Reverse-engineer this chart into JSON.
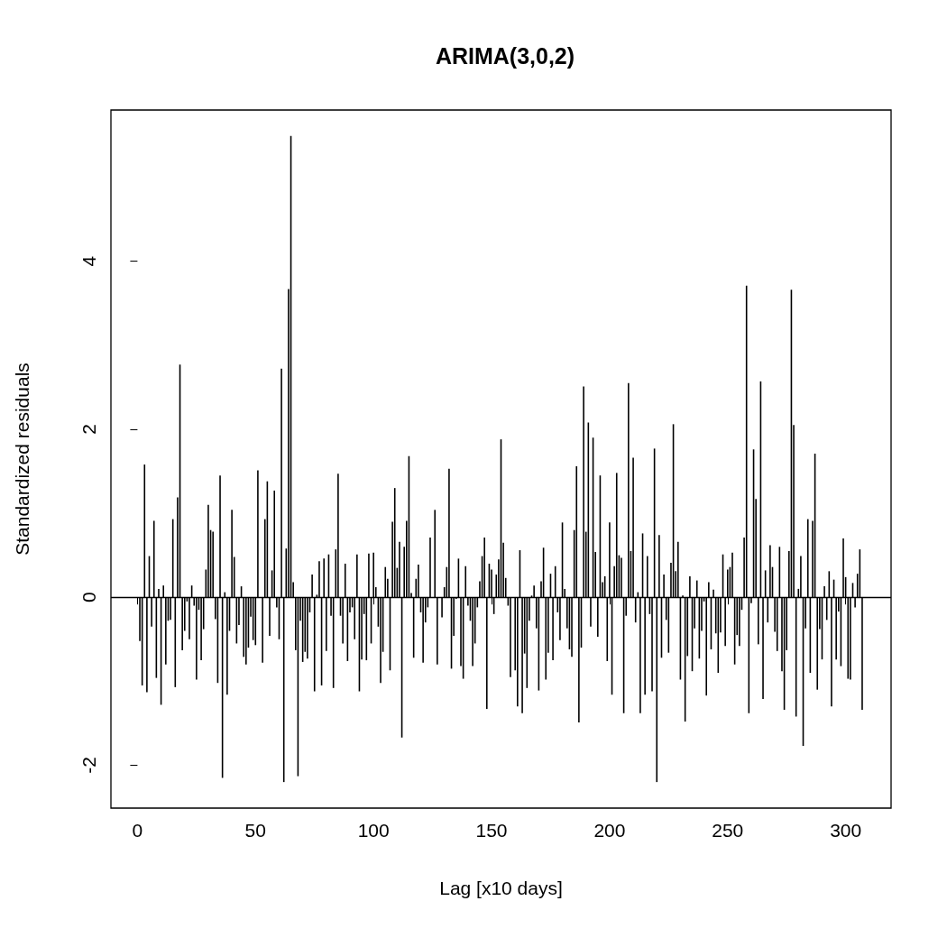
{
  "chart_data": {
    "type": "bar",
    "title": "ARIMA(3,0,2)",
    "xlabel": "Lag [x10 days]",
    "ylabel": "Standardized residuals",
    "x": [
      1,
      2,
      3,
      4,
      5,
      6,
      7,
      8,
      9,
      10,
      11,
      12,
      13,
      14,
      15,
      16,
      17,
      18,
      19,
      20,
      21,
      22,
      23,
      24,
      25,
      26,
      27,
      28,
      29,
      30,
      31,
      32,
      33,
      34,
      35,
      36,
      37,
      38,
      39,
      40,
      41,
      42,
      43,
      44,
      45,
      46,
      47,
      48,
      49,
      50,
      51,
      52,
      53,
      54,
      55,
      56,
      57,
      58,
      59,
      60,
      61,
      62,
      63,
      64,
      65,
      66,
      67,
      68,
      69,
      70,
      71,
      72,
      73,
      74,
      75,
      76,
      77,
      78,
      79,
      80,
      81,
      82,
      83,
      84,
      85,
      86,
      87,
      88,
      89,
      90,
      91,
      92,
      93,
      94,
      95,
      96,
      97,
      98,
      99,
      100,
      101,
      102,
      103,
      104,
      105,
      106,
      107,
      108,
      109,
      110,
      111,
      112,
      113,
      114,
      115,
      116,
      117,
      118,
      119,
      120,
      121,
      122,
      123,
      124,
      125,
      126,
      127,
      128,
      129,
      130,
      131,
      132,
      133,
      134,
      135,
      136,
      137,
      138,
      139,
      140,
      141,
      142,
      143,
      144,
      145,
      146,
      147,
      148,
      149,
      150,
      151,
      152,
      153,
      154,
      155,
      156,
      157,
      158,
      159,
      160,
      161,
      162,
      163,
      164,
      165,
      166,
      167,
      168,
      169,
      170,
      171,
      172,
      173,
      174,
      175,
      176,
      177,
      178,
      179,
      180,
      181,
      182,
      183,
      184,
      185,
      186,
      187,
      188,
      189,
      190,
      191,
      192,
      193,
      194,
      195,
      196,
      197,
      198,
      199,
      200,
      201,
      202,
      203,
      204,
      205,
      206,
      207,
      208,
      209,
      210,
      211,
      212,
      213,
      214,
      215,
      216,
      217,
      218,
      219,
      220,
      221,
      222,
      223,
      224,
      225,
      226,
      227,
      228,
      229,
      230,
      231,
      232,
      233,
      234,
      235,
      236,
      237,
      238,
      239,
      240,
      241,
      242,
      243,
      244,
      245,
      246,
      247,
      248,
      249,
      250,
      251,
      252,
      253,
      254,
      255,
      256,
      257,
      258,
      259,
      260,
      261,
      262,
      263,
      264,
      265,
      266,
      267,
      268,
      269,
      270,
      271,
      272,
      273,
      274,
      275,
      276,
      277,
      278,
      279,
      280,
      281,
      282,
      283,
      284,
      285,
      286,
      287,
      288,
      289,
      290,
      291,
      292,
      293,
      294,
      295,
      296,
      297,
      298,
      299,
      300,
      301,
      302,
      303,
      304,
      305,
      306,
      307
    ],
    "series": [
      {
        "color": "#000000",
        "values": [
          -0.52,
          -1.05,
          1.58,
          -1.13,
          0.49,
          -0.35,
          0.91,
          -0.96,
          0.1,
          -1.28,
          0.14,
          -0.8,
          -0.28,
          -0.27,
          0.93,
          -1.07,
          1.19,
          2.77,
          -0.63,
          -0.4,
          -0.05,
          -0.5,
          0.14,
          -0.1,
          -0.98,
          -0.15,
          -0.75,
          -0.38,
          0.33,
          1.1,
          0.8,
          0.78,
          -0.26,
          -1.02,
          1.45,
          -2.15,
          0.06,
          -1.16,
          -0.4,
          1.04,
          0.48,
          -0.55,
          -0.33,
          0.13,
          -0.71,
          -0.8,
          -0.6,
          -0.23,
          -0.51,
          -0.57,
          1.51,
          null,
          -0.78,
          0.93,
          1.38,
          -0.46,
          0.32,
          1.27,
          -0.12,
          -0.5,
          2.72,
          -2.2,
          0.58,
          3.67,
          5.49,
          0.18,
          -0.63,
          -2.13,
          -0.28,
          -0.77,
          -0.65,
          -0.73,
          -0.18,
          0.27,
          -1.12,
          0.03,
          0.43,
          -1.05,
          0.46,
          -0.64,
          0.51,
          -0.22,
          -1.08,
          0.57,
          1.47,
          -0.22,
          -0.55,
          0.4,
          -0.76,
          -0.18,
          -0.12,
          -0.5,
          0.51,
          -1.12,
          -0.74,
          -0.2,
          -0.75,
          0.52,
          -0.55,
          0.53,
          0.12,
          -0.35,
          -1.02,
          -0.65,
          0.36,
          0.22,
          -0.87,
          0.9,
          1.3,
          0.35,
          0.66,
          -1.67,
          0.6,
          0.91,
          1.68,
          0.05,
          -0.72,
          0.22,
          0.39,
          -0.18,
          -0.78,
          -0.3,
          -0.12,
          0.71,
          null,
          1.04,
          -0.8,
          null,
          -0.24,
          0.12,
          0.36,
          1.53,
          -0.85,
          -0.46,
          -0.02,
          0.46,
          -0.82,
          -0.97,
          0.37,
          -0.1,
          -0.28,
          -0.82,
          -0.55,
          -0.12,
          0.19,
          0.49,
          0.71,
          -1.33,
          0.4,
          0.33,
          -0.2,
          0.27,
          0.45,
          1.88,
          0.65,
          0.23,
          -0.1,
          -0.95,
          null,
          -0.87,
          -1.3,
          0.56,
          -1.38,
          -0.67,
          -1.08,
          -0.28,
          0.02,
          0.14,
          -0.37,
          -1.11,
          0.19,
          0.59,
          -0.98,
          -0.66,
          0.28,
          -0.75,
          0.37,
          -0.18,
          -0.51,
          0.89,
          0.1,
          -0.37,
          -0.62,
          -0.71,
          0.8,
          1.56,
          -1.49,
          -0.6,
          2.51,
          0.78,
          2.08,
          -0.35,
          1.9,
          0.54,
          -0.47,
          1.45,
          0.18,
          0.25,
          -0.76,
          0.89,
          -1.16,
          0.37,
          1.48,
          0.5,
          0.47,
          -1.38,
          -0.22,
          2.55,
          0.55,
          1.66,
          -0.3,
          0.06,
          -1.38,
          0.76,
          -1.16,
          0.49,
          -0.2,
          -1.12,
          1.77,
          -2.2,
          0.74,
          -0.72,
          0.27,
          -0.27,
          -0.66,
          0.41,
          2.06,
          0.31,
          0.66,
          -0.98,
          0.02,
          -1.48,
          -0.7,
          0.25,
          -0.88,
          -0.37,
          0.2,
          -0.73,
          -0.4,
          -0.05,
          -1.17,
          0.18,
          -0.62,
          0.09,
          -0.43,
          -0.9,
          -0.42,
          0.51,
          -0.58,
          0.33,
          0.36,
          0.53,
          -0.8,
          -0.45,
          -0.58,
          -0.15,
          0.71,
          3.71,
          -1.38,
          -0.07,
          1.76,
          1.17,
          -0.56,
          2.57,
          -1.21,
          0.32,
          -0.3,
          0.62,
          0.36,
          -0.41,
          -0.64,
          0.6,
          -0.88,
          -1.34,
          -0.63,
          0.55,
          3.66,
          2.05,
          -1.42,
          0.1,
          0.49,
          -1.77,
          -0.37,
          0.93,
          -0.9,
          0.91,
          1.71,
          -1.1,
          -0.38,
          -0.74,
          0.13,
          -0.27,
          0.31,
          -1.3,
          0.21,
          -0.74,
          -0.17,
          -0.82,
          0.7,
          0.24,
          -0.97,
          -0.98,
          0.17,
          -0.12,
          0.28,
          0.57,
          -1.34
        ]
      }
    ],
    "xlim": [
      -11.24,
      319.24
    ],
    "xticks": [
      0,
      50,
      100,
      150,
      200,
      250,
      300
    ],
    "ylim": [
      -2.51,
      5.8
    ],
    "yticks": [
      -2,
      0,
      2,
      4
    ],
    "ref_lines": [
      {
        "axis": "y",
        "value": 0,
        "color": "#000000"
      }
    ]
  }
}
